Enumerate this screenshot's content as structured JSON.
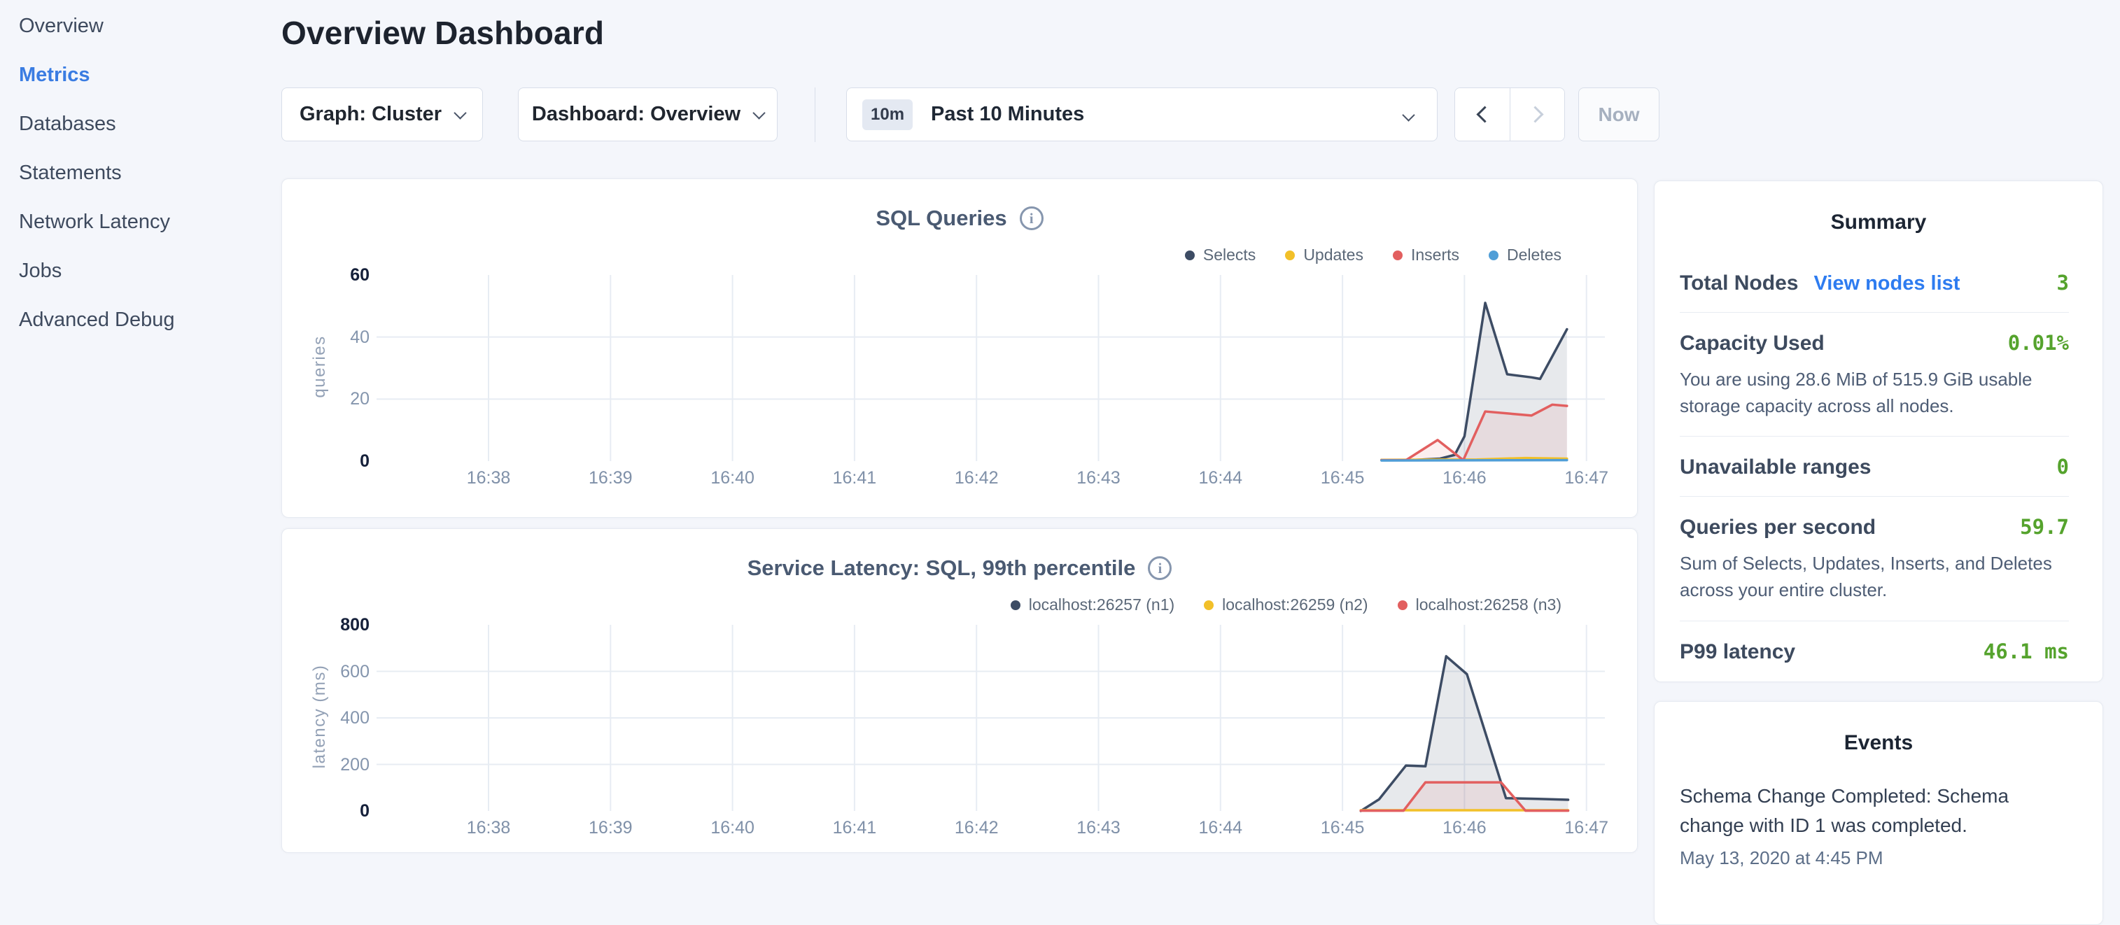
{
  "sidebar": {
    "items": [
      {
        "label": "Overview",
        "active": false
      },
      {
        "label": "Metrics",
        "active": true
      },
      {
        "label": "Databases",
        "active": false
      },
      {
        "label": "Statements",
        "active": false
      },
      {
        "label": "Network Latency",
        "active": false
      },
      {
        "label": "Jobs",
        "active": false
      },
      {
        "label": "Advanced Debug",
        "active": false
      }
    ]
  },
  "header": {
    "title": "Overview Dashboard"
  },
  "controls": {
    "graph_selector": "Graph: Cluster",
    "dashboard_selector": "Dashboard: Overview",
    "time_range": {
      "badge": "10m",
      "label": "Past 10 Minutes"
    },
    "now_label": "Now"
  },
  "colors": {
    "accent_green": "#55a32d",
    "link_blue": "#2e7cf0",
    "active_nav_blue": "#3a7ce2"
  },
  "summary": {
    "title": "Summary",
    "rows": [
      {
        "label": "Total Nodes",
        "link": "View nodes list",
        "value": "3"
      },
      {
        "label": "Capacity Used",
        "value": "0.01%",
        "description": "You are using 28.6 MiB of 515.9 GiB usable storage capacity across all nodes."
      },
      {
        "label": "Unavailable ranges",
        "value": "0"
      },
      {
        "label": "Queries per second",
        "value": "59.7",
        "description": "Sum of Selects, Updates, Inserts, and Deletes across your entire cluster."
      },
      {
        "label": "P99 latency",
        "value": "46.1 ms"
      }
    ]
  },
  "events": {
    "title": "Events",
    "items": [
      {
        "message": "Schema Change Completed: Schema change with ID 1 was completed.",
        "timestamp": "May 13, 2020 at 4:45 PM"
      }
    ]
  },
  "chart_data": [
    {
      "type": "line",
      "title": "SQL Queries",
      "ylabel": "queries",
      "ylim": [
        0,
        60
      ],
      "y_ticks": [
        0,
        20,
        40,
        60
      ],
      "x_ticks": [
        "16:38",
        "16:39",
        "16:40",
        "16:41",
        "16:42",
        "16:43",
        "16:44",
        "16:45",
        "16:46",
        "16:47"
      ],
      "x_tick_start_minute": 38,
      "grid": true,
      "legend_position": "top-right",
      "series": [
        {
          "name": "Selects",
          "color": "#3d4c64",
          "fill": "rgba(61,76,100,0.12)",
          "x": [
            45.32,
            45.6,
            45.8,
            45.92,
            46.0,
            46.17,
            46.35,
            46.55,
            46.62,
            46.84
          ],
          "y": [
            0.4,
            0.4,
            0.8,
            2,
            8,
            51,
            28,
            27,
            26.5,
            42.5
          ]
        },
        {
          "name": "Updates",
          "color": "#f2c029",
          "fill": "rgba(242,192,41,0.15)",
          "x": [
            45.32,
            46.1,
            46.5,
            46.84
          ],
          "y": [
            0.4,
            0.5,
            1,
            0.8
          ]
        },
        {
          "name": "Inserts",
          "color": "#e25f5f",
          "fill": "rgba(226,95,95,0.10)",
          "x": [
            45.32,
            45.52,
            45.78,
            45.99,
            46.17,
            46.4,
            46.55,
            46.72,
            46.84
          ],
          "y": [
            0.3,
            0.3,
            6.8,
            0.3,
            16,
            15.2,
            14.7,
            18.2,
            17.8
          ]
        },
        {
          "name": "Deletes",
          "color": "#509ed7",
          "fill": "rgba(80,158,215,0.12)",
          "x": [
            45.32,
            46.84
          ],
          "y": [
            0.2,
            0.3
          ]
        }
      ]
    },
    {
      "type": "line",
      "title": "Service Latency: SQL, 99th percentile",
      "ylabel": "latency (ms)",
      "ylim": [
        0,
        800
      ],
      "y_ticks": [
        0,
        200,
        400,
        600,
        800
      ],
      "x_ticks": [
        "16:38",
        "16:39",
        "16:40",
        "16:41",
        "16:42",
        "16:43",
        "16:44",
        "16:45",
        "16:46",
        "16:47"
      ],
      "x_tick_start_minute": 38,
      "grid": true,
      "legend_position": "top-right",
      "series": [
        {
          "name": "localhost:26257 (n1)",
          "color": "#3d4c64",
          "fill": "rgba(61,76,100,0.12)",
          "x": [
            45.15,
            45.3,
            45.52,
            45.68,
            45.85,
            46.02,
            46.34,
            46.6,
            46.85
          ],
          "y": [
            0,
            50,
            195,
            192,
            665,
            588,
            55,
            52,
            48
          ]
        },
        {
          "name": "localhost:26259 (n2)",
          "color": "#f2c029",
          "fill": "rgba(242,192,41,0.15)",
          "x": [
            45.15,
            46.85
          ],
          "y": [
            3,
            3
          ]
        },
        {
          "name": "localhost:26258 (n3)",
          "color": "#e25f5f",
          "fill": "rgba(226,95,95,0.10)",
          "x": [
            45.15,
            45.5,
            45.68,
            46.3,
            46.5,
            46.85
          ],
          "y": [
            1,
            1,
            123,
            123,
            1,
            1
          ]
        }
      ]
    }
  ]
}
